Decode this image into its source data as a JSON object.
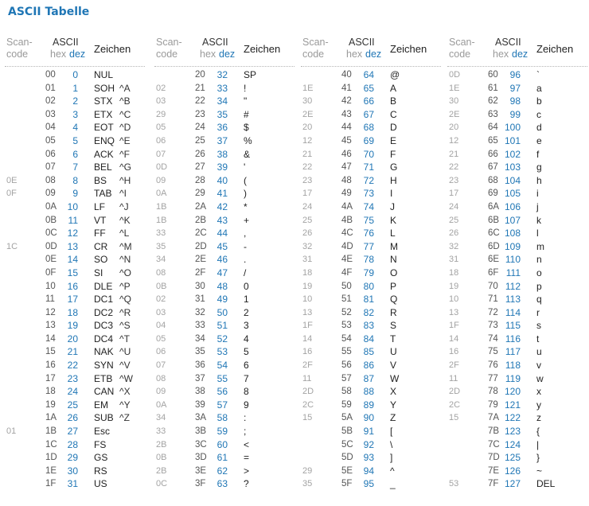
{
  "title": "ASCII Tabelle",
  "headers": {
    "scan_line1": "Scan-",
    "scan_line2": "code",
    "ascii": "ASCII",
    "hex": "hex",
    "dez": "dez",
    "zeichen": "Zeichen"
  },
  "groups": [
    {
      "rows": [
        {
          "scan": "",
          "hex": "00",
          "dez": "0",
          "char": "NUL",
          "ctrl": ""
        },
        {
          "scan": "",
          "hex": "01",
          "dez": "1",
          "char": "SOH",
          "ctrl": "^A"
        },
        {
          "scan": "",
          "hex": "02",
          "dez": "2",
          "char": "STX",
          "ctrl": "^B"
        },
        {
          "scan": "",
          "hex": "03",
          "dez": "3",
          "char": "ETX",
          "ctrl": "^C"
        },
        {
          "scan": "",
          "hex": "04",
          "dez": "4",
          "char": "EOT",
          "ctrl": "^D"
        },
        {
          "scan": "",
          "hex": "05",
          "dez": "5",
          "char": "ENQ",
          "ctrl": "^E"
        },
        {
          "scan": "",
          "hex": "06",
          "dez": "6",
          "char": "ACK",
          "ctrl": "^F"
        },
        {
          "scan": "",
          "hex": "07",
          "dez": "7",
          "char": "BEL",
          "ctrl": "^G"
        },
        {
          "scan": "0E",
          "hex": "08",
          "dez": "8",
          "char": "BS",
          "ctrl": "^H"
        },
        {
          "scan": "0F",
          "hex": "09",
          "dez": "9",
          "char": "TAB",
          "ctrl": "^I"
        },
        {
          "scan": "",
          "hex": "0A",
          "dez": "10",
          "char": "LF",
          "ctrl": "^J"
        },
        {
          "scan": "",
          "hex": "0B",
          "dez": "11",
          "char": "VT",
          "ctrl": "^K"
        },
        {
          "scan": "",
          "hex": "0C",
          "dez": "12",
          "char": "FF",
          "ctrl": "^L"
        },
        {
          "scan": "1C",
          "hex": "0D",
          "dez": "13",
          "char": "CR",
          "ctrl": "^M"
        },
        {
          "scan": "",
          "hex": "0E",
          "dez": "14",
          "char": "SO",
          "ctrl": "^N"
        },
        {
          "scan": "",
          "hex": "0F",
          "dez": "15",
          "char": "SI",
          "ctrl": "^O"
        },
        {
          "scan": "",
          "hex": "10",
          "dez": "16",
          "char": "DLE",
          "ctrl": "^P"
        },
        {
          "scan": "",
          "hex": "11",
          "dez": "17",
          "char": "DC1",
          "ctrl": "^Q"
        },
        {
          "scan": "",
          "hex": "12",
          "dez": "18",
          "char": "DC2",
          "ctrl": "^R"
        },
        {
          "scan": "",
          "hex": "13",
          "dez": "19",
          "char": "DC3",
          "ctrl": "^S"
        },
        {
          "scan": "",
          "hex": "14",
          "dez": "20",
          "char": "DC4",
          "ctrl": "^T"
        },
        {
          "scan": "",
          "hex": "15",
          "dez": "21",
          "char": "NAK",
          "ctrl": "^U"
        },
        {
          "scan": "",
          "hex": "16",
          "dez": "22",
          "char": "SYN",
          "ctrl": "^V"
        },
        {
          "scan": "",
          "hex": "17",
          "dez": "23",
          "char": "ETB",
          "ctrl": "^W"
        },
        {
          "scan": "",
          "hex": "18",
          "dez": "24",
          "char": "CAN",
          "ctrl": "^X"
        },
        {
          "scan": "",
          "hex": "19",
          "dez": "25",
          "char": "EM",
          "ctrl": "^Y"
        },
        {
          "scan": "",
          "hex": "1A",
          "dez": "26",
          "char": "SUB",
          "ctrl": "^Z"
        },
        {
          "scan": "01",
          "hex": "1B",
          "dez": "27",
          "char": "Esc",
          "ctrl": ""
        },
        {
          "scan": "",
          "hex": "1C",
          "dez": "28",
          "char": "FS",
          "ctrl": ""
        },
        {
          "scan": "",
          "hex": "1D",
          "dez": "29",
          "char": "GS",
          "ctrl": ""
        },
        {
          "scan": "",
          "hex": "1E",
          "dez": "30",
          "char": "RS",
          "ctrl": ""
        },
        {
          "scan": "",
          "hex": "1F",
          "dez": "31",
          "char": "US",
          "ctrl": ""
        }
      ]
    },
    {
      "rows": [
        {
          "scan": "",
          "hex": "20",
          "dez": "32",
          "char": "SP",
          "ctrl": ""
        },
        {
          "scan": "02",
          "hex": "21",
          "dez": "33",
          "char": "!",
          "ctrl": ""
        },
        {
          "scan": "03",
          "hex": "22",
          "dez": "34",
          "char": "\"",
          "ctrl": ""
        },
        {
          "scan": "29",
          "hex": "23",
          "dez": "35",
          "char": "#",
          "ctrl": ""
        },
        {
          "scan": "05",
          "hex": "24",
          "dez": "36",
          "char": "$",
          "ctrl": ""
        },
        {
          "scan": "06",
          "hex": "25",
          "dez": "37",
          "char": "%",
          "ctrl": ""
        },
        {
          "scan": "07",
          "hex": "26",
          "dez": "38",
          "char": "&",
          "ctrl": ""
        },
        {
          "scan": "0D",
          "hex": "27",
          "dez": "39",
          "char": "'",
          "ctrl": ""
        },
        {
          "scan": "09",
          "hex": "28",
          "dez": "40",
          "char": "(",
          "ctrl": ""
        },
        {
          "scan": "0A",
          "hex": "29",
          "dez": "41",
          "char": ")",
          "ctrl": ""
        },
        {
          "scan": "1B",
          "hex": "2A",
          "dez": "42",
          "char": "*",
          "ctrl": ""
        },
        {
          "scan": "1B",
          "hex": "2B",
          "dez": "43",
          "char": "+",
          "ctrl": ""
        },
        {
          "scan": "33",
          "hex": "2C",
          "dez": "44",
          "char": ",",
          "ctrl": ""
        },
        {
          "scan": "35",
          "hex": "2D",
          "dez": "45",
          "char": "-",
          "ctrl": ""
        },
        {
          "scan": "34",
          "hex": "2E",
          "dez": "46",
          "char": ".",
          "ctrl": ""
        },
        {
          "scan": "08",
          "hex": "2F",
          "dez": "47",
          "char": "/",
          "ctrl": ""
        },
        {
          "scan": "0B",
          "hex": "30",
          "dez": "48",
          "char": "0",
          "ctrl": ""
        },
        {
          "scan": "02",
          "hex": "31",
          "dez": "49",
          "char": "1",
          "ctrl": ""
        },
        {
          "scan": "03",
          "hex": "32",
          "dez": "50",
          "char": "2",
          "ctrl": ""
        },
        {
          "scan": "04",
          "hex": "33",
          "dez": "51",
          "char": "3",
          "ctrl": ""
        },
        {
          "scan": "05",
          "hex": "34",
          "dez": "52",
          "char": "4",
          "ctrl": ""
        },
        {
          "scan": "06",
          "hex": "35",
          "dez": "53",
          "char": "5",
          "ctrl": ""
        },
        {
          "scan": "07",
          "hex": "36",
          "dez": "54",
          "char": "6",
          "ctrl": ""
        },
        {
          "scan": "08",
          "hex": "37",
          "dez": "55",
          "char": "7",
          "ctrl": ""
        },
        {
          "scan": "09",
          "hex": "38",
          "dez": "56",
          "char": "8",
          "ctrl": ""
        },
        {
          "scan": "0A",
          "hex": "39",
          "dez": "57",
          "char": "9",
          "ctrl": ""
        },
        {
          "scan": "34",
          "hex": "3A",
          "dez": "58",
          "char": ":",
          "ctrl": ""
        },
        {
          "scan": "33",
          "hex": "3B",
          "dez": "59",
          "char": ";",
          "ctrl": ""
        },
        {
          "scan": "2B",
          "hex": "3C",
          "dez": "60",
          "char": "<",
          "ctrl": ""
        },
        {
          "scan": "0B",
          "hex": "3D",
          "dez": "61",
          "char": "=",
          "ctrl": ""
        },
        {
          "scan": "2B",
          "hex": "3E",
          "dez": "62",
          "char": ">",
          "ctrl": ""
        },
        {
          "scan": "0C",
          "hex": "3F",
          "dez": "63",
          "char": "?",
          "ctrl": ""
        }
      ]
    },
    {
      "rows": [
        {
          "scan": "",
          "hex": "40",
          "dez": "64",
          "char": "@",
          "ctrl": ""
        },
        {
          "scan": "1E",
          "hex": "41",
          "dez": "65",
          "char": "A",
          "ctrl": ""
        },
        {
          "scan": "30",
          "hex": "42",
          "dez": "66",
          "char": "B",
          "ctrl": ""
        },
        {
          "scan": "2E",
          "hex": "43",
          "dez": "67",
          "char": "C",
          "ctrl": ""
        },
        {
          "scan": "20",
          "hex": "44",
          "dez": "68",
          "char": "D",
          "ctrl": ""
        },
        {
          "scan": "12",
          "hex": "45",
          "dez": "69",
          "char": "E",
          "ctrl": ""
        },
        {
          "scan": "21",
          "hex": "46",
          "dez": "70",
          "char": "F",
          "ctrl": ""
        },
        {
          "scan": "22",
          "hex": "47",
          "dez": "71",
          "char": "G",
          "ctrl": ""
        },
        {
          "scan": "23",
          "hex": "48",
          "dez": "72",
          "char": "H",
          "ctrl": ""
        },
        {
          "scan": "17",
          "hex": "49",
          "dez": "73",
          "char": "I",
          "ctrl": ""
        },
        {
          "scan": "24",
          "hex": "4A",
          "dez": "74",
          "char": "J",
          "ctrl": ""
        },
        {
          "scan": "25",
          "hex": "4B",
          "dez": "75",
          "char": "K",
          "ctrl": ""
        },
        {
          "scan": "26",
          "hex": "4C",
          "dez": "76",
          "char": "L",
          "ctrl": ""
        },
        {
          "scan": "32",
          "hex": "4D",
          "dez": "77",
          "char": "M",
          "ctrl": ""
        },
        {
          "scan": "31",
          "hex": "4E",
          "dez": "78",
          "char": "N",
          "ctrl": ""
        },
        {
          "scan": "18",
          "hex": "4F",
          "dez": "79",
          "char": "O",
          "ctrl": ""
        },
        {
          "scan": "19",
          "hex": "50",
          "dez": "80",
          "char": "P",
          "ctrl": ""
        },
        {
          "scan": "10",
          "hex": "51",
          "dez": "81",
          "char": "Q",
          "ctrl": ""
        },
        {
          "scan": "13",
          "hex": "52",
          "dez": "82",
          "char": "R",
          "ctrl": ""
        },
        {
          "scan": "1F",
          "hex": "53",
          "dez": "83",
          "char": "S",
          "ctrl": ""
        },
        {
          "scan": "14",
          "hex": "54",
          "dez": "84",
          "char": "T",
          "ctrl": ""
        },
        {
          "scan": "16",
          "hex": "55",
          "dez": "85",
          "char": "U",
          "ctrl": ""
        },
        {
          "scan": "2F",
          "hex": "56",
          "dez": "86",
          "char": "V",
          "ctrl": ""
        },
        {
          "scan": "11",
          "hex": "57",
          "dez": "87",
          "char": "W",
          "ctrl": ""
        },
        {
          "scan": "2D",
          "hex": "58",
          "dez": "88",
          "char": "X",
          "ctrl": ""
        },
        {
          "scan": "2C",
          "hex": "59",
          "dez": "89",
          "char": "Y",
          "ctrl": ""
        },
        {
          "scan": "15",
          "hex": "5A",
          "dez": "90",
          "char": "Z",
          "ctrl": ""
        },
        {
          "scan": "",
          "hex": "5B",
          "dez": "91",
          "char": "[",
          "ctrl": ""
        },
        {
          "scan": "",
          "hex": "5C",
          "dez": "92",
          "char": "\\",
          "ctrl": ""
        },
        {
          "scan": "",
          "hex": "5D",
          "dez": "93",
          "char": "]",
          "ctrl": ""
        },
        {
          "scan": "29",
          "hex": "5E",
          "dez": "94",
          "char": "^",
          "ctrl": ""
        },
        {
          "scan": "35",
          "hex": "5F",
          "dez": "95",
          "char": "_",
          "ctrl": ""
        }
      ]
    },
    {
      "rows": [
        {
          "scan": "0D",
          "hex": "60",
          "dez": "96",
          "char": "`",
          "ctrl": ""
        },
        {
          "scan": "1E",
          "hex": "61",
          "dez": "97",
          "char": "a",
          "ctrl": ""
        },
        {
          "scan": "30",
          "hex": "62",
          "dez": "98",
          "char": "b",
          "ctrl": ""
        },
        {
          "scan": "2E",
          "hex": "63",
          "dez": "99",
          "char": "c",
          "ctrl": ""
        },
        {
          "scan": "20",
          "hex": "64",
          "dez": "100",
          "char": "d",
          "ctrl": ""
        },
        {
          "scan": "12",
          "hex": "65",
          "dez": "101",
          "char": "e",
          "ctrl": ""
        },
        {
          "scan": "21",
          "hex": "66",
          "dez": "102",
          "char": "f",
          "ctrl": ""
        },
        {
          "scan": "22",
          "hex": "67",
          "dez": "103",
          "char": "g",
          "ctrl": ""
        },
        {
          "scan": "23",
          "hex": "68",
          "dez": "104",
          "char": "h",
          "ctrl": ""
        },
        {
          "scan": "17",
          "hex": "69",
          "dez": "105",
          "char": "i",
          "ctrl": ""
        },
        {
          "scan": "24",
          "hex": "6A",
          "dez": "106",
          "char": "j",
          "ctrl": ""
        },
        {
          "scan": "25",
          "hex": "6B",
          "dez": "107",
          "char": "k",
          "ctrl": ""
        },
        {
          "scan": "26",
          "hex": "6C",
          "dez": "108",
          "char": "l",
          "ctrl": ""
        },
        {
          "scan": "32",
          "hex": "6D",
          "dez": "109",
          "char": "m",
          "ctrl": ""
        },
        {
          "scan": "31",
          "hex": "6E",
          "dez": "110",
          "char": "n",
          "ctrl": ""
        },
        {
          "scan": "18",
          "hex": "6F",
          "dez": "111",
          "char": "o",
          "ctrl": ""
        },
        {
          "scan": "19",
          "hex": "70",
          "dez": "112",
          "char": "p",
          "ctrl": ""
        },
        {
          "scan": "10",
          "hex": "71",
          "dez": "113",
          "char": "q",
          "ctrl": ""
        },
        {
          "scan": "13",
          "hex": "72",
          "dez": "114",
          "char": "r",
          "ctrl": ""
        },
        {
          "scan": "1F",
          "hex": "73",
          "dez": "115",
          "char": "s",
          "ctrl": ""
        },
        {
          "scan": "14",
          "hex": "74",
          "dez": "116",
          "char": "t",
          "ctrl": ""
        },
        {
          "scan": "16",
          "hex": "75",
          "dez": "117",
          "char": "u",
          "ctrl": ""
        },
        {
          "scan": "2F",
          "hex": "76",
          "dez": "118",
          "char": "v",
          "ctrl": ""
        },
        {
          "scan": "11",
          "hex": "77",
          "dez": "119",
          "char": "w",
          "ctrl": ""
        },
        {
          "scan": "2D",
          "hex": "78",
          "dez": "120",
          "char": "x",
          "ctrl": ""
        },
        {
          "scan": "2C",
          "hex": "79",
          "dez": "121",
          "char": "y",
          "ctrl": ""
        },
        {
          "scan": "15",
          "hex": "7A",
          "dez": "122",
          "char": "z",
          "ctrl": ""
        },
        {
          "scan": "",
          "hex": "7B",
          "dez": "123",
          "char": "{",
          "ctrl": ""
        },
        {
          "scan": "",
          "hex": "7C",
          "dez": "124",
          "char": "|",
          "ctrl": ""
        },
        {
          "scan": "",
          "hex": "7D",
          "dez": "125",
          "char": "}",
          "ctrl": ""
        },
        {
          "scan": "",
          "hex": "7E",
          "dez": "126",
          "char": "~",
          "ctrl": ""
        },
        {
          "scan": "53",
          "hex": "7F",
          "dez": "127",
          "char": "DEL",
          "ctrl": ""
        }
      ]
    }
  ]
}
